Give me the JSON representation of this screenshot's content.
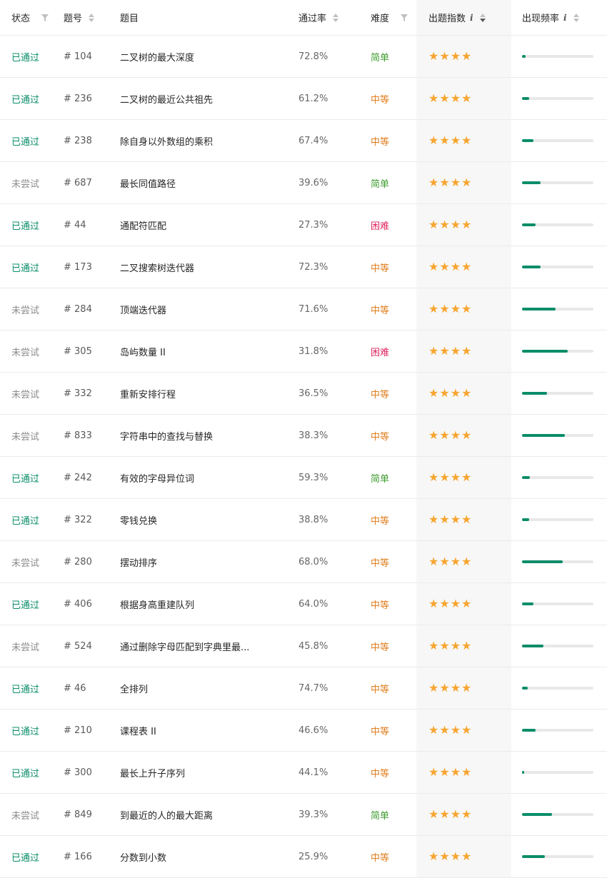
{
  "header": {
    "status": "状态",
    "id": "题号",
    "title": "题目",
    "rate": "通过率",
    "difficulty": "难度",
    "freq_index": "出题指数",
    "frequency": "出现频率",
    "info_glyph": "i"
  },
  "colors": {
    "passed": "#0a8d69",
    "untried": "#8c8c8c",
    "easy": "#3e9c2e",
    "medium": "#e07d1d",
    "hard": "#e0245e",
    "star": "#f7a530",
    "bar": "#0a8d69"
  },
  "star_glyph": "★",
  "rows": [
    {
      "status": "已通过",
      "status_key": "passed",
      "id": "# 104",
      "title": "二叉树的最大深度",
      "rate": "72.8%",
      "difficulty": "简单",
      "diff_key": "easy",
      "stars": 4,
      "frequency": 0.05
    },
    {
      "status": "已通过",
      "status_key": "passed",
      "id": "# 236",
      "title": "二叉树的最近公共祖先",
      "rate": "61.2%",
      "difficulty": "中等",
      "diff_key": "medium",
      "stars": 4,
      "frequency": 0.1
    },
    {
      "status": "已通过",
      "status_key": "passed",
      "id": "# 238",
      "title": "除自身以外数组的乘积",
      "rate": "67.4%",
      "difficulty": "中等",
      "diff_key": "medium",
      "stars": 4,
      "frequency": 0.16
    },
    {
      "status": "未尝试",
      "status_key": "untried",
      "id": "# 687",
      "title": "最长同值路径",
      "rate": "39.6%",
      "difficulty": "简单",
      "diff_key": "easy",
      "stars": 4,
      "frequency": 0.26
    },
    {
      "status": "已通过",
      "status_key": "passed",
      "id": "# 44",
      "title": "通配符匹配",
      "rate": "27.3%",
      "difficulty": "困难",
      "diff_key": "hard",
      "stars": 4,
      "frequency": 0.19
    },
    {
      "status": "已通过",
      "status_key": "passed",
      "id": "# 173",
      "title": "二叉搜索树迭代器",
      "rate": "72.3%",
      "difficulty": "中等",
      "diff_key": "medium",
      "stars": 4,
      "frequency": 0.26
    },
    {
      "status": "未尝试",
      "status_key": "untried",
      "id": "# 284",
      "title": "顶端迭代器",
      "rate": "71.6%",
      "difficulty": "中等",
      "diff_key": "medium",
      "stars": 4,
      "frequency": 0.47
    },
    {
      "status": "未尝试",
      "status_key": "untried",
      "id": "# 305",
      "title": "岛屿数量 II",
      "rate": "31.8%",
      "difficulty": "困难",
      "diff_key": "hard",
      "stars": 4,
      "frequency": 0.64
    },
    {
      "status": "未尝试",
      "status_key": "untried",
      "id": "# 332",
      "title": "重新安排行程",
      "rate": "36.5%",
      "difficulty": "中等",
      "diff_key": "medium",
      "stars": 4,
      "frequency": 0.35
    },
    {
      "status": "未尝试",
      "status_key": "untried",
      "id": "# 833",
      "title": "字符串中的查找与替换",
      "rate": "38.3%",
      "difficulty": "中等",
      "diff_key": "medium",
      "stars": 4,
      "frequency": 0.6
    },
    {
      "status": "已通过",
      "status_key": "passed",
      "id": "# 242",
      "title": "有效的字母异位词",
      "rate": "59.3%",
      "difficulty": "简单",
      "diff_key": "easy",
      "stars": 4,
      "frequency": 0.11
    },
    {
      "status": "已通过",
      "status_key": "passed",
      "id": "# 322",
      "title": "零钱兑换",
      "rate": "38.8%",
      "difficulty": "中等",
      "diff_key": "medium",
      "stars": 4,
      "frequency": 0.1
    },
    {
      "status": "未尝试",
      "status_key": "untried",
      "id": "# 280",
      "title": "摆动排序",
      "rate": "68.0%",
      "difficulty": "中等",
      "diff_key": "medium",
      "stars": 4,
      "frequency": 0.57
    },
    {
      "status": "已通过",
      "status_key": "passed",
      "id": "# 406",
      "title": "根据身高重建队列",
      "rate": "64.0%",
      "difficulty": "中等",
      "diff_key": "medium",
      "stars": 4,
      "frequency": 0.16
    },
    {
      "status": "未尝试",
      "status_key": "untried",
      "id": "# 524",
      "title": "通过删除字母匹配到字典里最...",
      "rate": "45.8%",
      "difficulty": "中等",
      "diff_key": "medium",
      "stars": 4,
      "frequency": 0.3
    },
    {
      "status": "已通过",
      "status_key": "passed",
      "id": "# 46",
      "title": "全排列",
      "rate": "74.7%",
      "difficulty": "中等",
      "diff_key": "medium",
      "stars": 4,
      "frequency": 0.08
    },
    {
      "status": "已通过",
      "status_key": "passed",
      "id": "# 210",
      "title": "课程表 II",
      "rate": "46.6%",
      "difficulty": "中等",
      "diff_key": "medium",
      "stars": 4,
      "frequency": 0.19
    },
    {
      "status": "已通过",
      "status_key": "passed",
      "id": "# 300",
      "title": "最长上升子序列",
      "rate": "44.1%",
      "difficulty": "中等",
      "diff_key": "medium",
      "stars": 4,
      "frequency": 0.03
    },
    {
      "status": "未尝试",
      "status_key": "untried",
      "id": "# 849",
      "title": "到最近的人的最大距离",
      "rate": "39.3%",
      "difficulty": "简单",
      "diff_key": "easy",
      "stars": 4,
      "frequency": 0.42
    },
    {
      "status": "已通过",
      "status_key": "passed",
      "id": "# 166",
      "title": "分数到小数",
      "rate": "25.9%",
      "difficulty": "中等",
      "diff_key": "medium",
      "stars": 4,
      "frequency": 0.32
    }
  ]
}
